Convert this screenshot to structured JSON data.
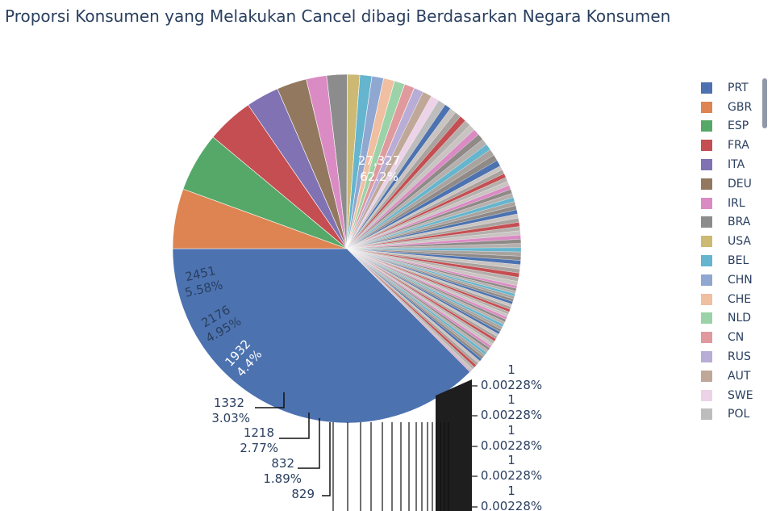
{
  "chart_data": {
    "type": "pie",
    "title": "Proporsi Konsumen yang Melakukan Cancel dibagi Berdasarkan Negara Konsumen",
    "labels_top": [
      "PRT",
      "GBR",
      "ESP",
      "FRA",
      "ITA",
      "DEU",
      "IRL",
      "BRA",
      "USA",
      "BEL",
      "CHN",
      "CHE",
      "NLD",
      "CN",
      "RUS",
      "AUT",
      "SWE",
      "POL"
    ],
    "values_top": [
      27327,
      2451,
      2176,
      1932,
      1332,
      1218,
      832,
      829
    ],
    "percents_top": [
      "62.2%",
      "5.58%",
      "4.95%",
      "4.4%",
      "3.03%",
      "2.77%",
      "1.89%"
    ],
    "small_slice_label": {
      "value": "1",
      "percent": "0.00228%"
    },
    "colors": [
      "#4c72b0",
      "#dd8452",
      "#55a868",
      "#c44e52",
      "#8172b3",
      "#937860",
      "#da8bc3",
      "#8c8c8c",
      "#ccb974",
      "#64b5cd",
      "#8fa7d1",
      "#f0bea0",
      "#9bd2a7",
      "#e0999c",
      "#b8add6",
      "#c0a898",
      "#ecd3e8",
      "#bdbdbd"
    ],
    "legend_placement": "right"
  },
  "labels": {
    "prt_value": "27,327",
    "prt_pct": "62.2%",
    "gbr_value": "2451",
    "gbr_pct": "5.58%",
    "esp_value": "2176",
    "esp_pct": "4.95%",
    "fra_value": "1932",
    "fra_pct": "4.4%",
    "ita_value": "1332",
    "ita_pct": "3.03%",
    "deu_value": "1218",
    "deu_pct": "2.77%",
    "irl_value": "832",
    "irl_pct": "1.89%",
    "bra_value": "829",
    "tail_value": "1",
    "tail_pct": "0.00228%"
  }
}
